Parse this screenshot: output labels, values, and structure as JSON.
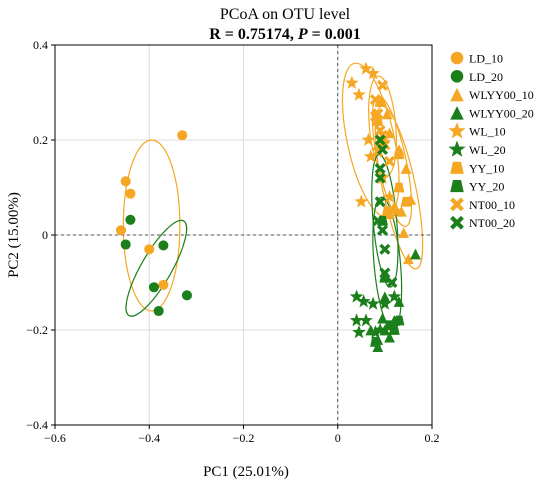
{
  "chart_data": {
    "type": "scatter",
    "title": "PCoA on OTU level",
    "subtitle_parts": [
      {
        "text": "R = 0.75174, ",
        "italic": false
      },
      {
        "text": "P",
        "italic": true
      },
      {
        "text": " = 0.001",
        "italic": false
      }
    ],
    "xlabel": "PC1 (25.01%)",
    "ylabel": "PC2 (15.00%)",
    "xlim": [
      -0.6,
      0.2
    ],
    "ylim": [
      -0.4,
      0.4
    ],
    "xticks": [
      -0.6,
      -0.4,
      -0.2,
      0,
      0.2
    ],
    "yticks": [
      -0.4,
      -0.2,
      0,
      0.2,
      0.4
    ],
    "xtick_labels": [
      "−0.6",
      "−0.4",
      "−0.2",
      "0",
      "0.2"
    ],
    "ytick_labels": [
      "−0.4",
      "−0.2",
      "0",
      "0.2",
      "0.4"
    ],
    "grid": true,
    "zero_lines": true,
    "legend_position": "right",
    "colors": {
      "orange": "#F5A623",
      "green": "#1B7F1B"
    },
    "series": [
      {
        "name": "LD_10",
        "shape": "circle",
        "color": "#F5A623",
        "points": [
          [
            -0.33,
            0.21
          ],
          [
            -0.45,
            0.113
          ],
          [
            -0.44,
            0.087
          ],
          [
            -0.46,
            0.01
          ],
          [
            -0.4,
            -0.03
          ],
          [
            -0.37,
            -0.105
          ]
        ]
      },
      {
        "name": "LD_20",
        "shape": "circle",
        "color": "#1B7F1B",
        "points": [
          [
            -0.44,
            0.032
          ],
          [
            -0.45,
            -0.02
          ],
          [
            -0.37,
            -0.022
          ],
          [
            -0.39,
            -0.11
          ],
          [
            -0.32,
            -0.127
          ],
          [
            -0.38,
            -0.16
          ]
        ]
      },
      {
        "name": "WLYY00_10",
        "shape": "triangle",
        "color": "#F5A623",
        "points": [
          [
            0.105,
            0.255
          ],
          [
            0.11,
            0.215
          ],
          [
            0.13,
            0.18
          ],
          [
            0.145,
            0.14
          ],
          [
            0.155,
            0.075
          ],
          [
            0.12,
            0.06
          ],
          [
            0.11,
            0.045
          ],
          [
            0.135,
            0.05
          ],
          [
            0.14,
            0.005
          ],
          [
            0.15,
            -0.05
          ]
        ]
      },
      {
        "name": "WLYY00_20",
        "shape": "triangle",
        "color": "#1B7F1B",
        "points": [
          [
            0.165,
            -0.04
          ],
          [
            0.1,
            -0.13
          ],
          [
            0.13,
            -0.14
          ],
          [
            0.12,
            -0.18
          ],
          [
            0.1,
            -0.2
          ],
          [
            0.085,
            -0.22
          ],
          [
            0.07,
            -0.2
          ],
          [
            0.11,
            -0.215
          ],
          [
            0.085,
            -0.235
          ],
          [
            0.095,
            -0.175
          ]
        ]
      },
      {
        "name": "WL_10",
        "shape": "star",
        "color": "#F5A623",
        "points": [
          [
            0.03,
            0.32
          ],
          [
            0.06,
            0.35
          ],
          [
            0.075,
            0.34
          ],
          [
            0.045,
            0.295
          ],
          [
            0.065,
            0.2
          ],
          [
            0.07,
            0.165
          ],
          [
            0.095,
            0.12
          ],
          [
            0.11,
            0.08
          ],
          [
            0.125,
            0.05
          ],
          [
            0.05,
            0.07
          ]
        ]
      },
      {
        "name": "WL_20",
        "shape": "star",
        "color": "#1B7F1B",
        "points": [
          [
            0.04,
            -0.13
          ],
          [
            0.055,
            -0.14
          ],
          [
            0.075,
            -0.145
          ],
          [
            0.1,
            -0.145
          ],
          [
            0.04,
            -0.18
          ],
          [
            0.06,
            -0.18
          ],
          [
            0.045,
            -0.205
          ],
          [
            0.08,
            -0.205
          ],
          [
            0.09,
            -0.2
          ],
          [
            0.12,
            -0.13
          ]
        ]
      },
      {
        "name": "YY_10",
        "shape": "trapezoid",
        "color": "#F5A623",
        "points": [
          [
            0.09,
            0.28
          ],
          [
            0.085,
            0.24
          ],
          [
            0.095,
            0.195
          ],
          [
            0.13,
            0.1
          ],
          [
            0.13,
            0.17
          ],
          [
            0.145,
            0.07
          ],
          [
            0.105,
            0.05
          ]
        ]
      },
      {
        "name": "YY_20",
        "shape": "trapezoid",
        "color": "#1B7F1B",
        "points": [
          [
            0.095,
            0.03
          ],
          [
            0.1,
            -0.09
          ],
          [
            0.11,
            -0.19
          ],
          [
            0.12,
            -0.2
          ],
          [
            0.13,
            -0.18
          ],
          [
            0.08,
            -0.225
          ]
        ]
      },
      {
        "name": "NT00_10",
        "shape": "cross",
        "color": "#F5A623",
        "points": [
          [
            0.095,
            0.315
          ],
          [
            0.08,
            0.285
          ],
          [
            0.085,
            0.255
          ],
          [
            0.08,
            0.25
          ],
          [
            0.09,
            0.22
          ],
          [
            0.095,
            0.21
          ],
          [
            0.09,
            0.185
          ],
          [
            0.085,
            0.175
          ],
          [
            0.1,
            0.19
          ],
          [
            0.11,
            0.155
          ]
        ]
      },
      {
        "name": "NT00_20",
        "shape": "cross",
        "color": "#1B7F1B",
        "points": [
          [
            0.09,
            0.2
          ],
          [
            0.095,
            0.18
          ],
          [
            0.09,
            0.14
          ],
          [
            0.09,
            0.12
          ],
          [
            0.09,
            0.07
          ],
          [
            0.085,
            0.03
          ],
          [
            0.095,
            0.01
          ],
          [
            0.1,
            -0.03
          ],
          [
            0.1,
            -0.08
          ],
          [
            0.115,
            -0.1
          ]
        ]
      }
    ],
    "ellipses": [
      {
        "group": "LD_10",
        "color": "#F5A623",
        "center": [
          -0.395,
          0.02
        ],
        "rx": 0.06,
        "ry": 0.18,
        "angle": 0
      },
      {
        "group": "LD_20",
        "color": "#1B7F1B",
        "center": [
          -0.385,
          -0.07
        ],
        "rx": 0.032,
        "ry": 0.115,
        "angle": 30
      },
      {
        "group": "WL_10",
        "color": "#F5A623",
        "center": [
          0.07,
          0.2
        ],
        "rx": 0.05,
        "ry": 0.165,
        "angle": -12
      },
      {
        "group": "YY_10",
        "color": "#F5A623",
        "center": [
          0.115,
          0.155
        ],
        "rx": 0.03,
        "ry": 0.14,
        "angle": -12
      },
      {
        "group": "NT00_10",
        "color": "#F5A623",
        "center": [
          0.095,
          0.23
        ],
        "rx": 0.028,
        "ry": 0.105,
        "angle": -5
      },
      {
        "group": "WLYY00_10",
        "color": "#F5A623",
        "center": [
          0.13,
          0.1
        ],
        "rx": 0.035,
        "ry": 0.175,
        "angle": -12
      },
      {
        "group": "NT00_20",
        "color": "#1B7F1B",
        "center": [
          0.1,
          0.03
        ],
        "rx": 0.025,
        "ry": 0.14,
        "angle": -5
      },
      {
        "group": "YY_20",
        "color": "#1B7F1B",
        "center": [
          0.105,
          -0.06
        ],
        "rx": 0.028,
        "ry": 0.14,
        "angle": -5
      }
    ]
  }
}
